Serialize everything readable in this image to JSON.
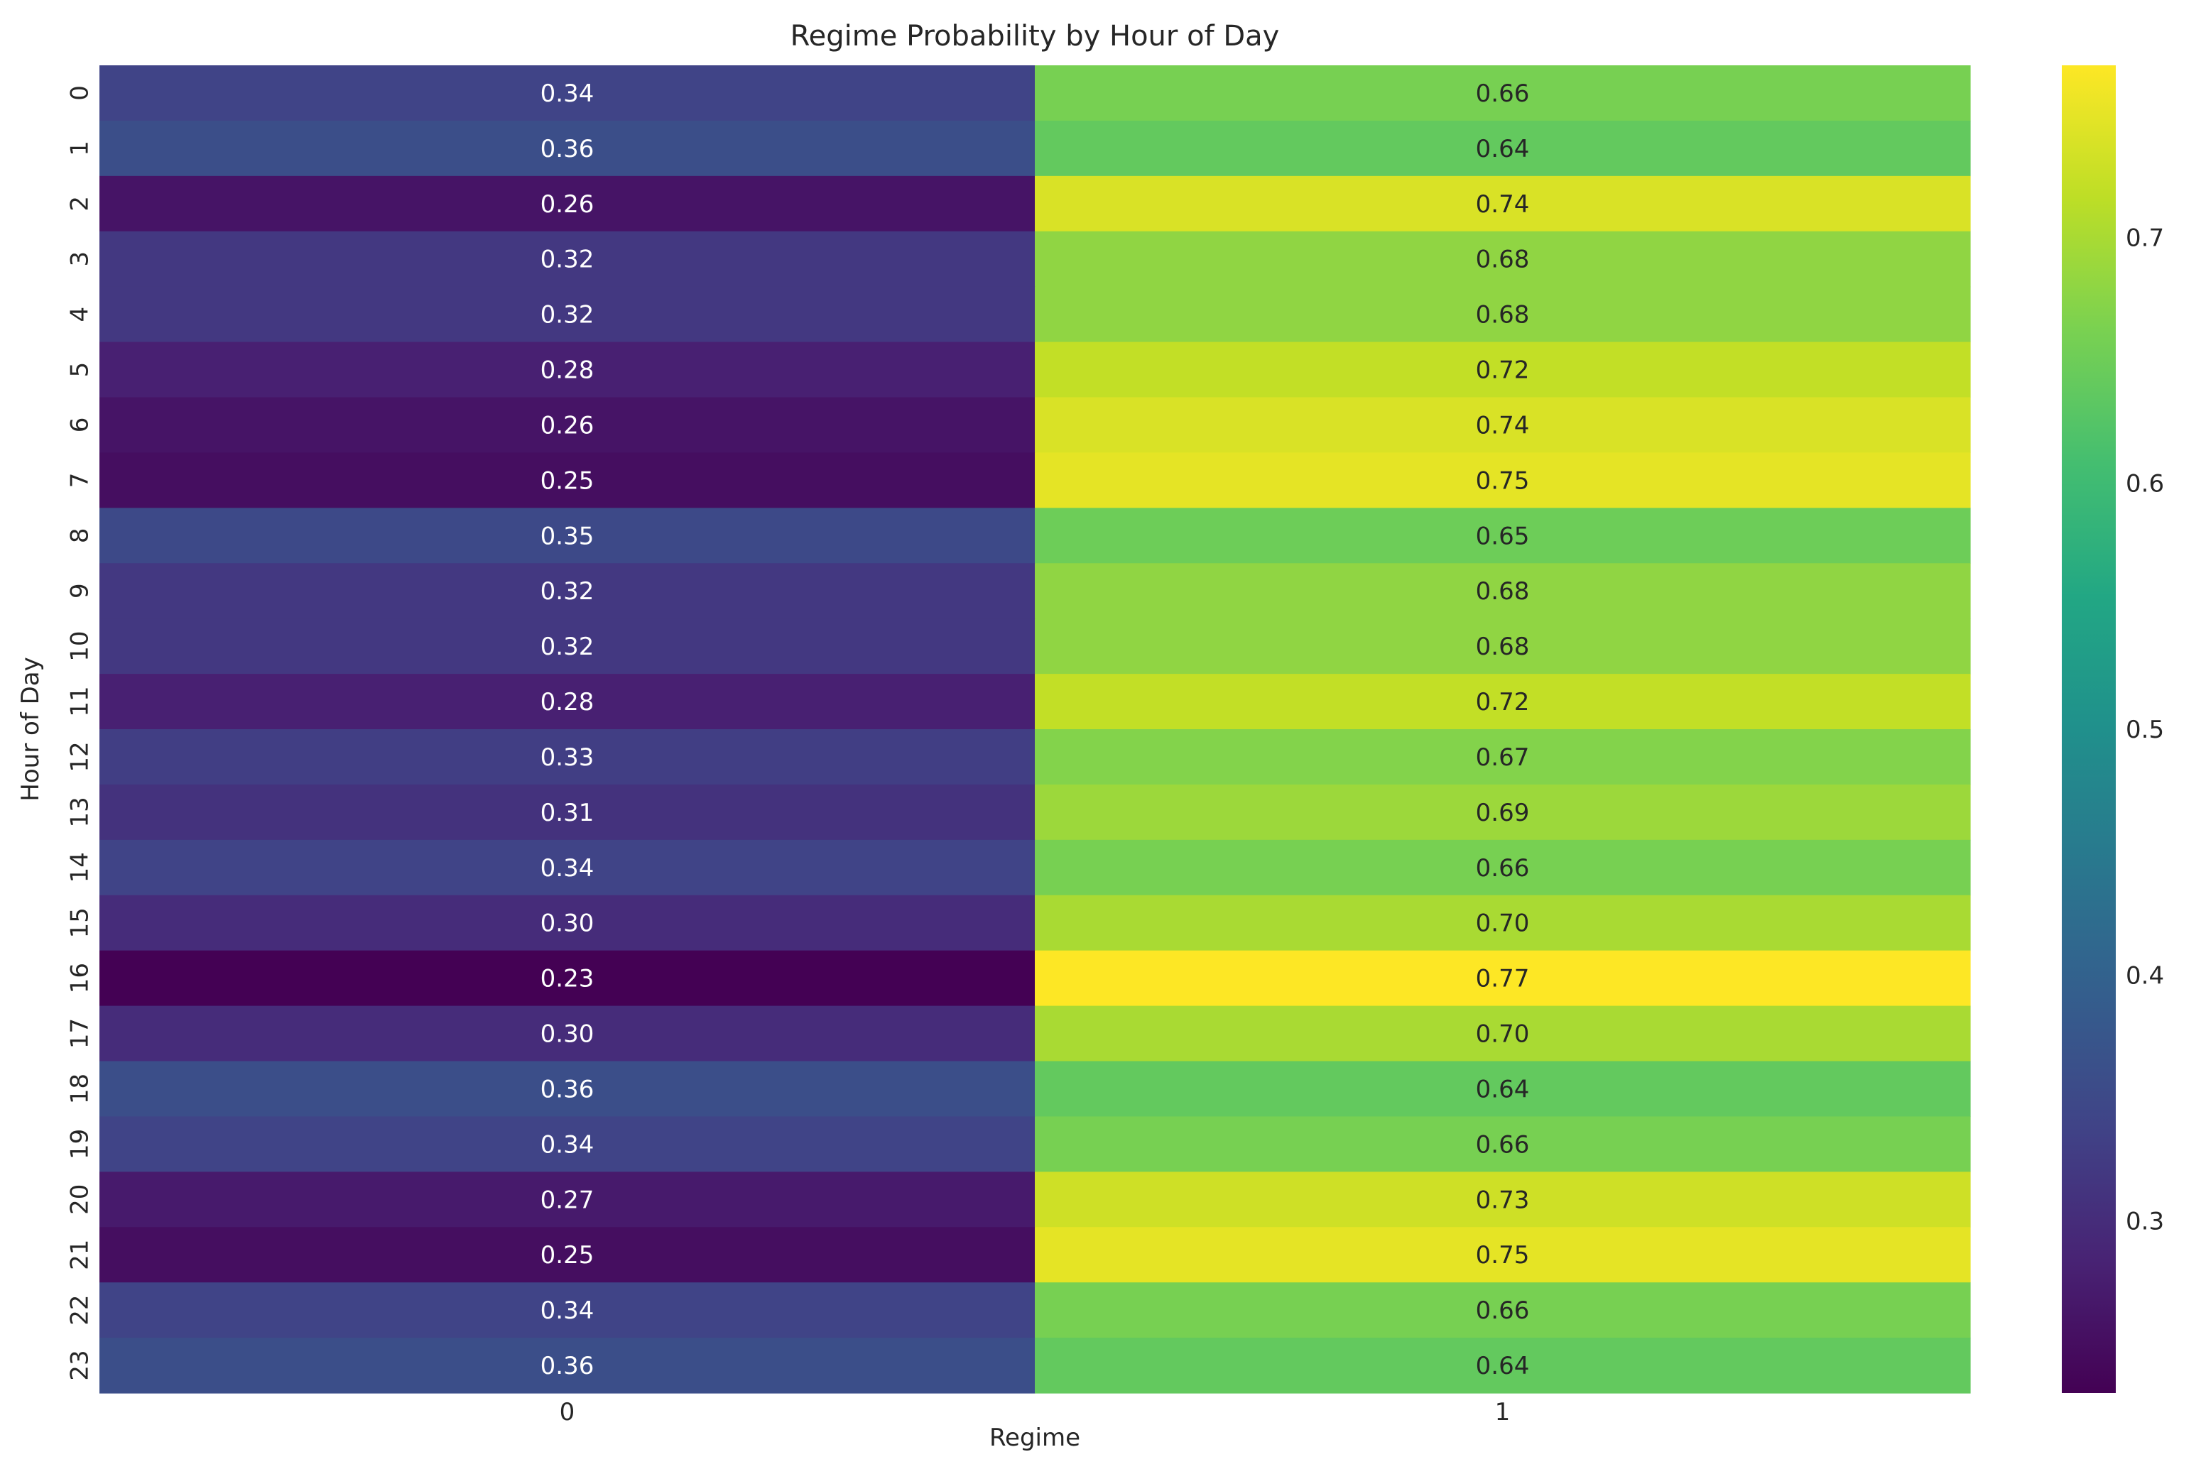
{
  "chart_data": {
    "type": "heatmap",
    "title": "Regime Probability by Hour of Day",
    "xlabel": "Regime",
    "ylabel": "Hour of Day",
    "x_categories": [
      "0",
      "1"
    ],
    "y_categories": [
      "0",
      "1",
      "2",
      "3",
      "4",
      "5",
      "6",
      "7",
      "8",
      "9",
      "10",
      "11",
      "12",
      "13",
      "14",
      "15",
      "16",
      "17",
      "18",
      "19",
      "20",
      "21",
      "22",
      "23"
    ],
    "values": [
      [
        0.34,
        0.66
      ],
      [
        0.36,
        0.64
      ],
      [
        0.26,
        0.74
      ],
      [
        0.32,
        0.68
      ],
      [
        0.32,
        0.68
      ],
      [
        0.28,
        0.72
      ],
      [
        0.26,
        0.74
      ],
      [
        0.25,
        0.75
      ],
      [
        0.35,
        0.65
      ],
      [
        0.32,
        0.68
      ],
      [
        0.32,
        0.68
      ],
      [
        0.28,
        0.72
      ],
      [
        0.33,
        0.67
      ],
      [
        0.31,
        0.69
      ],
      [
        0.34,
        0.66
      ],
      [
        0.3,
        0.7
      ],
      [
        0.23,
        0.77
      ],
      [
        0.3,
        0.7
      ],
      [
        0.36,
        0.64
      ],
      [
        0.34,
        0.66
      ],
      [
        0.27,
        0.73
      ],
      [
        0.25,
        0.75
      ],
      [
        0.34,
        0.66
      ],
      [
        0.36,
        0.64
      ]
    ],
    "colormap": "viridis",
    "color_range": [
      0.23,
      0.77
    ],
    "colorbar_ticks": [
      0.3,
      0.4,
      0.5,
      0.6,
      0.7
    ],
    "grid": false,
    "annotations": true
  }
}
